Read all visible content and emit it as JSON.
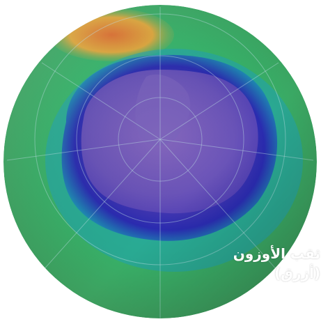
{
  "image": {
    "description_label": "",
    "caption": {
      "line1": "ثقب الأوزون",
      "line2": "(أزرق)"
    },
    "colors": {
      "background": "#ffffff",
      "ozone_low_purple": "#5a3fb0",
      "ozone_hole_blue": "#2b2fb0",
      "mid_cyan": "#2fa0b0",
      "high_green": "#3fb85a",
      "hot_spot_orange": "#e06a2a",
      "caption_text": "#ffffff"
    }
  }
}
